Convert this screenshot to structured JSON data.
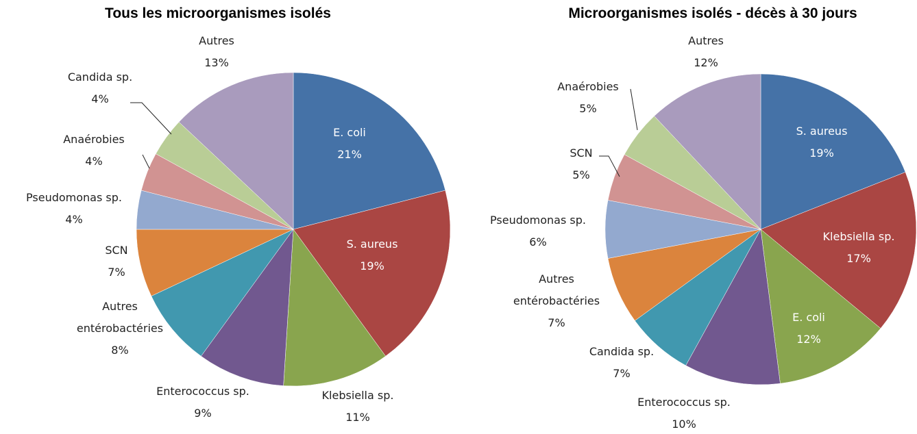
{
  "chart_data": [
    {
      "type": "pie",
      "title": "Tous les microorganismes isolés",
      "categories": [
        "E. coli",
        "S. aureus",
        "Klebsiella sp.",
        "Enterococcus sp.",
        "Autres entérobactéries",
        "SCN",
        "Pseudomonas sp.",
        "Anaérobies",
        "Candida sp.",
        "Autres"
      ],
      "values": [
        21,
        19,
        11,
        9,
        8,
        7,
        4,
        4,
        4,
        13
      ],
      "value_labels": [
        "21%",
        "19%",
        "11%",
        "9%",
        "8%",
        "7%",
        "4%",
        "4%",
        "4%",
        "13%"
      ],
      "colors": [
        "#4572a7",
        "#aa4643",
        "#89a54e",
        "#71588f",
        "#4198af",
        "#db843d",
        "#93a9cf",
        "#d19392",
        "#b9cd96",
        "#a99bbd"
      ]
    },
    {
      "type": "pie",
      "title": "Microorganismes isolés - décès à 30 jours",
      "categories": [
        "S. aureus",
        "Klebsiella sp.",
        "E. coli",
        "Enterococcus sp.",
        "Candida sp.",
        "Autres entérobactéries",
        "Pseudomonas sp.",
        "SCN",
        "Anaérobies",
        "Autres"
      ],
      "values": [
        19,
        17,
        12,
        10,
        7,
        7,
        6,
        5,
        5,
        12
      ],
      "value_labels": [
        "19%",
        "17%",
        "12%",
        "10%",
        "7%",
        "7%",
        "6%",
        "5%",
        "5%",
        "12%"
      ],
      "colors": [
        "#4572a7",
        "#aa4643",
        "#89a54e",
        "#71588f",
        "#4198af",
        "#db843d",
        "#93a9cf",
        "#d19392",
        "#b9cd96",
        "#a99bbd"
      ]
    }
  ]
}
